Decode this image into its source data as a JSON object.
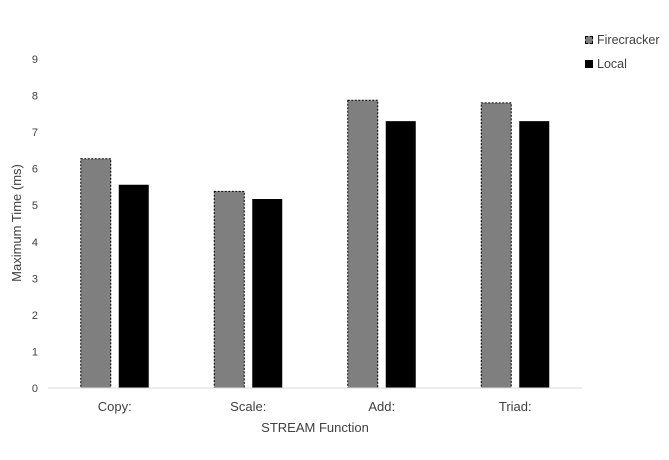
{
  "chart_data": {
    "type": "bar",
    "title": "",
    "xlabel": "STREAM Function",
    "ylabel": "Maximum Time (ms)",
    "categories": [
      "Copy:",
      "Scale:",
      "Add:",
      "Triad:"
    ],
    "ylim": [
      0,
      9
    ],
    "yticks": [
      "0",
      "1",
      "2",
      "3",
      "4",
      "5",
      "6",
      "7",
      "8",
      "9"
    ],
    "grid": false,
    "legend_position": "top-right",
    "series": [
      {
        "name": "Firecracker",
        "values": [
          6.27,
          5.38,
          7.87,
          7.8
        ],
        "color": "#7f7f7f",
        "border": "dashed"
      },
      {
        "name": "Local",
        "values": [
          5.56,
          5.17,
          7.3,
          7.3
        ],
        "color": "#000000"
      }
    ]
  }
}
